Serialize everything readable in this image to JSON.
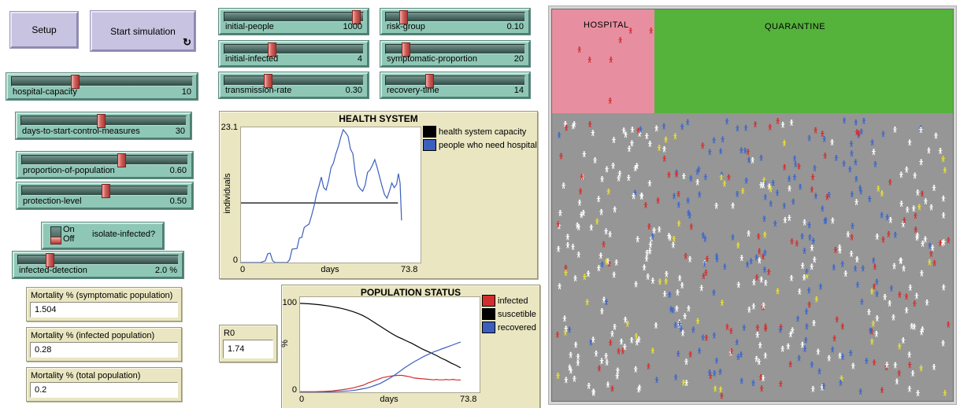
{
  "buttons": {
    "setup": {
      "label": "Setup"
    },
    "go": {
      "label": "Start simulation",
      "forever_icon": "↻"
    }
  },
  "sliders": [
    {
      "id": "hospital-capacity",
      "label": "hospital-capacity",
      "value": "10",
      "fraction": 0.34
    },
    {
      "id": "days-to-start-control-measures",
      "label": "days-to-start-control-measures",
      "value": "30",
      "fraction": 0.48
    },
    {
      "id": "proportion-of-population",
      "label": "proportion-of-population",
      "value": "0.60",
      "fraction": 0.6
    },
    {
      "id": "protection-level",
      "label": "protection-level",
      "value": "0.50",
      "fraction": 0.5
    },
    {
      "id": "infected-detection",
      "label": "infected-detection",
      "value": "2.0 %",
      "fraction": 0.18
    },
    {
      "id": "initial-people",
      "label": "initial-people",
      "value": "1000",
      "fraction": 0.97
    },
    {
      "id": "initial-infected",
      "label": "initial-infected",
      "value": "4",
      "fraction": 0.33
    },
    {
      "id": "transmission-rate",
      "label": "transmission-rate",
      "value": "0.30",
      "fraction": 0.3
    },
    {
      "id": "risk-group",
      "label": "risk-group",
      "value": "0.10",
      "fraction": 0.1
    },
    {
      "id": "symptomatic-proportion",
      "label": "symptomatic-proportion",
      "value": "20",
      "fraction": 0.12
    },
    {
      "id": "recovery-time",
      "label": "recovery-time",
      "value": "14",
      "fraction": 0.3
    }
  ],
  "switch": {
    "label": "isolate-infected?",
    "on_label": "On",
    "off_label": "Off",
    "state": "Off"
  },
  "monitors": [
    {
      "label": "Mortality % (symptomatic population)",
      "value": "1.504"
    },
    {
      "label": "Mortality % (infected population)",
      "value": "0.28"
    },
    {
      "label": "Mortality % (total population)",
      "value": "0.2"
    },
    {
      "label": "R0",
      "value": "1.74"
    }
  ],
  "chart_data": [
    {
      "type": "line",
      "title": "HEALTH SYSTEM",
      "xlabel": "days",
      "ylabel": "individuals",
      "xlim": [
        0,
        73.8
      ],
      "ylim": [
        0,
        23.1
      ],
      "x_tick_labels": [
        "0",
        "73.8"
      ],
      "y_tick_labels": [
        "0",
        "23.1"
      ],
      "grid": false,
      "legend_position": "right",
      "series": [
        {
          "name": "health system capacity",
          "color": "#000000",
          "points": [
            [
              0,
              10.2
            ],
            [
              64.5,
              10.2
            ]
          ]
        },
        {
          "name": "people who need hospital",
          "color": "#3c5fbe",
          "points": [
            [
              0,
              0
            ],
            [
              8,
              0
            ],
            [
              10,
              0.3
            ],
            [
              11,
              1.5
            ],
            [
              12,
              1.6
            ],
            [
              13,
              0.3
            ],
            [
              14,
              0
            ],
            [
              19,
              0
            ],
            [
              20,
              0.5
            ],
            [
              21,
              2.3
            ],
            [
              23,
              2.4
            ],
            [
              24,
              4.2
            ],
            [
              25,
              4.3
            ],
            [
              26,
              6
            ],
            [
              28,
              6.6
            ],
            [
              29,
              8
            ],
            [
              30,
              9.6
            ],
            [
              31,
              11.6
            ],
            [
              32,
              13
            ],
            [
              33,
              14.6
            ],
            [
              34,
              12.8
            ],
            [
              35,
              12.4
            ],
            [
              36,
              14
            ],
            [
              37,
              16.2
            ],
            [
              38,
              17
            ],
            [
              39,
              18.6
            ],
            [
              40,
              19.8
            ],
            [
              41,
              21.4
            ],
            [
              42,
              22.7
            ],
            [
              43,
              22.2
            ],
            [
              44,
              21.6
            ],
            [
              45,
              19.4
            ],
            [
              46,
              18.6
            ],
            [
              47,
              15.2
            ],
            [
              48,
              13.2
            ],
            [
              49,
              12.6
            ],
            [
              50,
              12.2
            ],
            [
              51,
              13.2
            ],
            [
              52,
              15.4
            ],
            [
              53,
              15.8
            ],
            [
              54,
              16.6
            ],
            [
              55,
              17.6
            ],
            [
              56,
              16.2
            ],
            [
              57,
              14.6
            ],
            [
              58,
              13
            ],
            [
              59,
              11.6
            ],
            [
              60,
              11
            ],
            [
              61,
              12.2
            ],
            [
              62,
              13.6
            ],
            [
              63,
              12.8
            ],
            [
              64,
              13.4
            ],
            [
              64.7,
              15.2
            ],
            [
              65.4,
              13.6
            ],
            [
              66,
              7.2
            ]
          ]
        }
      ]
    },
    {
      "type": "line",
      "title": "POPULATION STATUS",
      "xlabel": "days",
      "ylabel": "%",
      "xlim": [
        0,
        73.8
      ],
      "ylim": [
        0,
        107
      ],
      "x_tick_labels": [
        "0",
        "73.8"
      ],
      "y_tick_labels": [
        "0",
        "100"
      ],
      "grid": false,
      "legend_position": "right",
      "series": [
        {
          "name": "infected",
          "color": "#d12f2f",
          "points": [
            [
              0,
              0.5
            ],
            [
              6,
              0.5
            ],
            [
              10,
              1
            ],
            [
              13,
              1.5
            ],
            [
              16,
              2.5
            ],
            [
              19,
              3.5
            ],
            [
              22,
              5
            ],
            [
              24,
              6.5
            ],
            [
              26,
              8
            ],
            [
              28,
              10.5
            ],
            [
              30,
              12.5
            ],
            [
              32,
              14.5
            ],
            [
              34,
              16.5
            ],
            [
              36,
              17.5
            ],
            [
              38,
              18.5
            ],
            [
              40,
              19
            ],
            [
              42,
              19
            ],
            [
              43,
              18.5
            ],
            [
              45,
              17.5
            ],
            [
              47,
              16
            ],
            [
              49,
              15.5
            ],
            [
              51,
              15
            ],
            [
              53,
              14.5
            ],
            [
              55,
              14
            ],
            [
              56,
              14.5
            ],
            [
              57,
              14
            ],
            [
              59,
              14
            ],
            [
              60,
              14.5
            ],
            [
              61,
              14
            ],
            [
              63,
              14.5
            ],
            [
              64,
              14
            ],
            [
              66,
              13.8
            ]
          ]
        },
        {
          "name": "suscetible",
          "color": "#000000",
          "points": [
            [
              0,
              100
            ],
            [
              4,
              99.5
            ],
            [
              8,
              98.5
            ],
            [
              12,
              97
            ],
            [
              16,
              95
            ],
            [
              19,
              93
            ],
            [
              22,
              90.5
            ],
            [
              24,
              88.5
            ],
            [
              26,
              86
            ],
            [
              28,
              83
            ],
            [
              30,
              79.5
            ],
            [
              32,
              76
            ],
            [
              34,
              72.5
            ],
            [
              36,
              69
            ],
            [
              38,
              65.5
            ],
            [
              40,
              62.5
            ],
            [
              42,
              60
            ],
            [
              44,
              57.5
            ],
            [
              46,
              55
            ],
            [
              48,
              52
            ],
            [
              50,
              49
            ],
            [
              52,
              46.5
            ],
            [
              54,
              44
            ],
            [
              56,
              41.5
            ],
            [
              58,
              38.5
            ],
            [
              60,
              36
            ],
            [
              62,
              33
            ],
            [
              64,
              30.5
            ],
            [
              66,
              27.5
            ]
          ]
        },
        {
          "name": "recovered",
          "color": "#3c5fbe",
          "points": [
            [
              0,
              0
            ],
            [
              8,
              0
            ],
            [
              12,
              0.5
            ],
            [
              16,
              1
            ],
            [
              20,
              1.5
            ],
            [
              23,
              2.5
            ],
            [
              25,
              3.5
            ],
            [
              27,
              4.5
            ],
            [
              29,
              6
            ],
            [
              31,
              8
            ],
            [
              33,
              10
            ],
            [
              35,
              13
            ],
            [
              37,
              16
            ],
            [
              39,
              19.5
            ],
            [
              41,
              23.5
            ],
            [
              43,
              27.5
            ],
            [
              45,
              31
            ],
            [
              47,
              34.5
            ],
            [
              49,
              37.5
            ],
            [
              51,
              40.5
            ],
            [
              53,
              43
            ],
            [
              55,
              45.5
            ],
            [
              57,
              47.5
            ],
            [
              59,
              49.5
            ],
            [
              61,
              51.5
            ],
            [
              63,
              53.5
            ],
            [
              65,
              55.5
            ],
            [
              66,
              56.5
            ]
          ]
        }
      ]
    }
  ],
  "world": {
    "hospital_label": "HOSPITAL",
    "quarantine_label": "QUARANTINE",
    "population_total": 540,
    "population_mix": {
      "white": 0.38,
      "blue": 0.32,
      "red": 0.2,
      "yellow": 0.1
    },
    "hospital_patients": [
      [
        97,
        23
      ],
      [
        123,
        23
      ],
      [
        84,
        35
      ],
      [
        32,
        47
      ],
      [
        45,
        60
      ],
      [
        72,
        60
      ],
      [
        71,
        112
      ]
    ],
    "seed": 20
  },
  "colors": {
    "teal": "#8fc7b6",
    "teal-light": "#cfeae1",
    "teal-dark": "#4d7d71",
    "teal-outline": "#5d8c81",
    "track-top": "#76958e",
    "track-bottom": "#2e4a44",
    "handle-red": "#d2605c",
    "lavender": "#c7c3e0",
    "lavender-light": "#e9e7f6",
    "lavender-dark": "#8c88b0",
    "beige": "#e9e6c1",
    "world-gray": "#969696",
    "hospital-pink": "#e78fa0",
    "quarantine-green": "#55b33c",
    "person-white": "#ffffff",
    "person-blue": "#3e67c8",
    "person-red": "#d42f2f",
    "person-yellow": "#e9df33"
  }
}
